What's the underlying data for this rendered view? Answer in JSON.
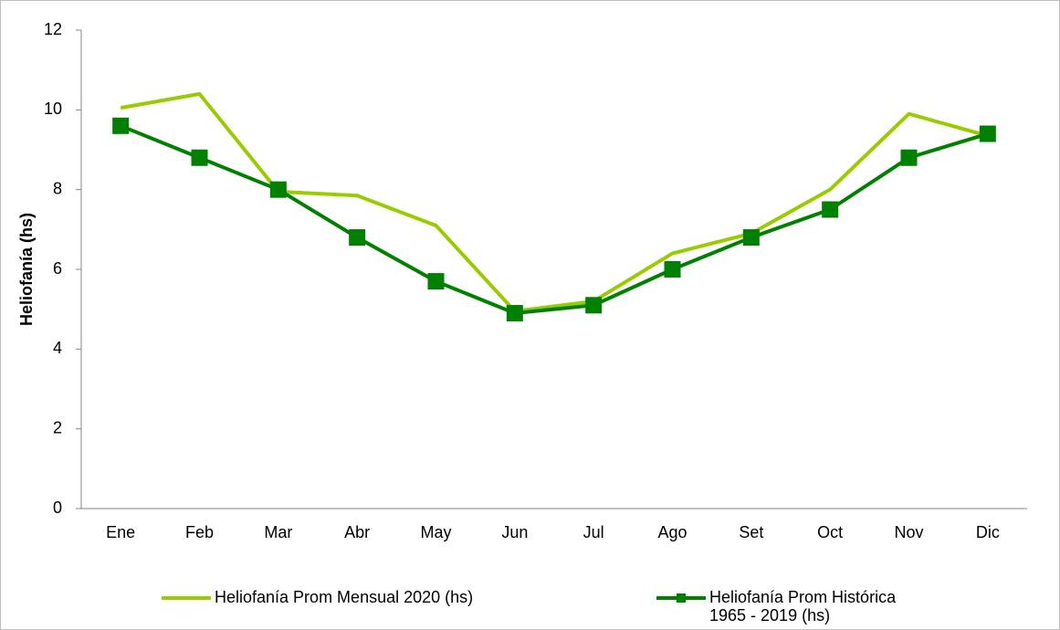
{
  "chart_data": {
    "type": "line",
    "y_label": "Heliofanía (hs)",
    "categories": [
      "Ene",
      "Feb",
      "Mar",
      "Abr",
      "May",
      "Jun",
      "Jul",
      "Ago",
      "Set",
      "Oct",
      "Nov",
      "Dic"
    ],
    "series": [
      {
        "name": "Heliofanía Prom Mensual 2020 (hs)",
        "color": "#99cc00",
        "marker": "none",
        "values": [
          10.05,
          10.4,
          7.95,
          7.85,
          7.1,
          4.95,
          5.2,
          6.4,
          6.9,
          8.0,
          9.9,
          9.35
        ]
      },
      {
        "name": "Heliofanía Prom Histórica\n1965 - 2019 (hs)",
        "color": "#008000",
        "marker": "square",
        "values": [
          9.6,
          8.8,
          8.0,
          6.8,
          5.7,
          4.9,
          5.1,
          6.0,
          6.8,
          7.5,
          8.8,
          9.4
        ]
      }
    ],
    "ylim": [
      0,
      12
    ],
    "yticks": [
      0,
      2,
      4,
      6,
      8,
      10,
      12
    ],
    "grid": false,
    "legend": "bottom"
  }
}
